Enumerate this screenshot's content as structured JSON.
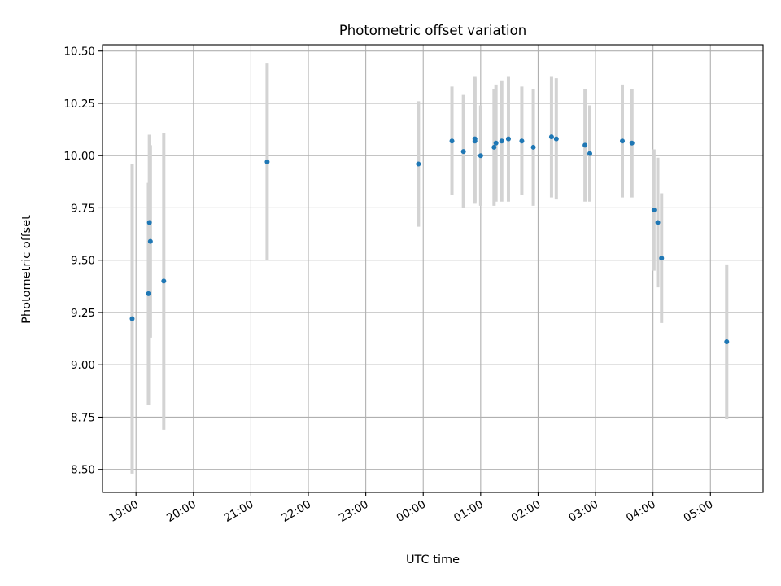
{
  "chart_data": {
    "type": "scatter",
    "title": "Photometric offset variation",
    "xlabel": "UTC time",
    "ylabel": "Photometric offset",
    "x_axis_kind": "time (HH:MM, UTC)",
    "xlim": [
      "18:25",
      "05:55"
    ],
    "ylim": [
      8.39,
      10.53
    ],
    "yticks": [
      8.5,
      8.75,
      9.0,
      9.25,
      9.5,
      9.75,
      10.0,
      10.25,
      10.5
    ],
    "ytick_labels": [
      "8.50",
      "8.75",
      "9.00",
      "9.25",
      "9.50",
      "9.75",
      "10.00",
      "10.25",
      "10.50"
    ],
    "xticks": [
      "19:00",
      "20:00",
      "21:00",
      "22:00",
      "23:00",
      "00:00",
      "01:00",
      "02:00",
      "03:00",
      "04:00",
      "05:00"
    ],
    "xtick_labels": [
      "19:00",
      "20:00",
      "21:00",
      "22:00",
      "23:00",
      "00:00",
      "01:00",
      "02:00",
      "03:00",
      "04:00",
      "05:00"
    ],
    "grid": true,
    "colors": {
      "point": "#1f77b4",
      "errorbar": "#d3d3d3",
      "grid": "#b0b0b0"
    },
    "series": [
      {
        "points": [
          {
            "t": "18:56",
            "y": 9.22,
            "err": 0.74
          },
          {
            "t": "19:13",
            "y": 9.34,
            "err": 0.53
          },
          {
            "t": "19:14",
            "y": 9.68,
            "err": 0.42
          },
          {
            "t": "19:15",
            "y": 9.59,
            "err": 0.46
          },
          {
            "t": "19:29",
            "y": 9.4,
            "err": 0.71
          },
          {
            "t": "21:17",
            "y": 9.97,
            "err": 0.47
          },
          {
            "t": "23:55",
            "y": 9.96,
            "err": 0.3
          },
          {
            "t": "00:30",
            "y": 10.07,
            "err": 0.26
          },
          {
            "t": "00:42",
            "y": 10.02,
            "err": 0.27
          },
          {
            "t": "00:54",
            "y": 10.08,
            "err": 0.3
          },
          {
            "t": "00:54",
            "y": 10.07,
            "err": 0.3
          },
          {
            "t": "01:00",
            "y": 10.0,
            "err": 0.24
          },
          {
            "t": "01:14",
            "y": 10.04,
            "err": 0.28
          },
          {
            "t": "01:16",
            "y": 10.06,
            "err": 0.28
          },
          {
            "t": "01:22",
            "y": 10.07,
            "err": 0.29
          },
          {
            "t": "01:29",
            "y": 10.08,
            "err": 0.3
          },
          {
            "t": "01:43",
            "y": 10.07,
            "err": 0.26
          },
          {
            "t": "01:55",
            "y": 10.04,
            "err": 0.28
          },
          {
            "t": "02:14",
            "y": 10.09,
            "err": 0.29
          },
          {
            "t": "02:19",
            "y": 10.08,
            "err": 0.29
          },
          {
            "t": "02:49",
            "y": 10.05,
            "err": 0.27
          },
          {
            "t": "02:54",
            "y": 10.01,
            "err": 0.23
          },
          {
            "t": "03:28",
            "y": 10.07,
            "err": 0.27
          },
          {
            "t": "03:38",
            "y": 10.06,
            "err": 0.26
          },
          {
            "t": "04:01",
            "y": 9.74,
            "err": 0.29
          },
          {
            "t": "04:05",
            "y": 9.68,
            "err": 0.31
          },
          {
            "t": "04:09",
            "y": 9.51,
            "err": 0.31
          },
          {
            "t": "05:17",
            "y": 9.11,
            "err": 0.37
          }
        ]
      }
    ]
  }
}
